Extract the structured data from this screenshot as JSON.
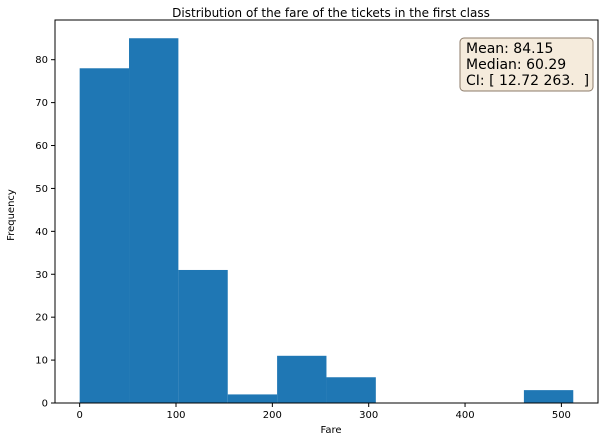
{
  "chart_data": {
    "type": "bar",
    "title": "Distribution of the fare of the tickets in the first class",
    "xlabel": "Fare",
    "ylabel": "Frequency",
    "bin_edges": [
      0,
      51.23,
      102.47,
      153.7,
      204.93,
      256.16,
      307.4,
      358.63,
      409.86,
      461.09,
      512.33
    ],
    "values": [
      78,
      85,
      31,
      2,
      11,
      6,
      0,
      0,
      0,
      3
    ],
    "xlim": [
      -25.6,
      538.0
    ],
    "ylim": [
      0,
      89.25
    ],
    "xticks": [
      0,
      100,
      200,
      300,
      400,
      500
    ],
    "yticks": [
      0,
      10,
      20,
      30,
      40,
      50,
      60,
      70,
      80
    ],
    "bar_color": "#1f77b4",
    "grid": false,
    "annotation": {
      "lines": [
        "Mean: 84.15",
        "Median: 60.29",
        "CI: [ 12.72 263.  ]"
      ],
      "position": "top-right",
      "box_fill": "#f5ebdc",
      "box_edge": "#8c7b6a"
    }
  }
}
